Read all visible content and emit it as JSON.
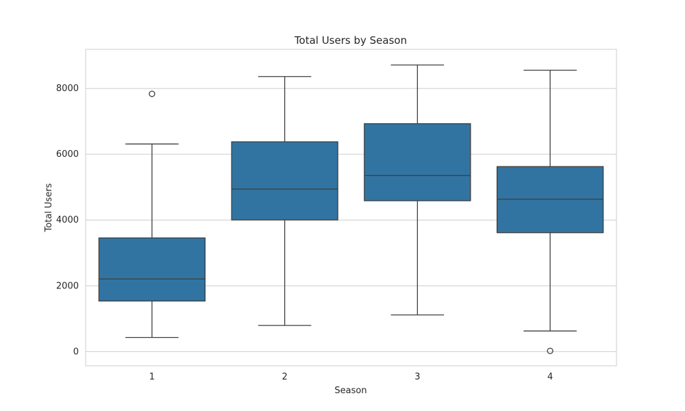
{
  "chart_data": {
    "type": "box",
    "title": "Total Users by Season",
    "xlabel": "Season",
    "ylabel": "Total Users",
    "categories": [
      "1",
      "2",
      "3",
      "4"
    ],
    "ylim": [
      -431,
      9190
    ],
    "yticks": [
      0,
      2000,
      4000,
      6000,
      8000
    ],
    "grid": true,
    "color": "#3274a1",
    "boxes": [
      {
        "category": "1",
        "whisker_low": 431,
        "q1": 1538,
        "median": 2209,
        "q3": 3456,
        "whisker_high": 6312,
        "outliers": [
          7836
        ]
      },
      {
        "category": "2",
        "whisker_low": 795,
        "q1": 4003,
        "median": 4941,
        "q3": 6378,
        "whisker_high": 8362,
        "outliers": []
      },
      {
        "category": "3",
        "whisker_low": 1115,
        "q1": 4587,
        "median": 5353,
        "q3": 6930,
        "whisker_high": 8714,
        "outliers": []
      },
      {
        "category": "4",
        "whisker_low": 627,
        "q1": 3615,
        "median": 4634,
        "q3": 5625,
        "whisker_high": 8555,
        "outliers": [
          22
        ]
      }
    ]
  }
}
